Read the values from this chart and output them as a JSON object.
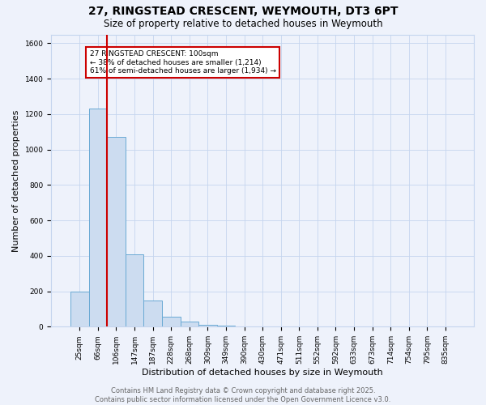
{
  "title_line1": "27, RINGSTEAD CRESCENT, WEYMOUTH, DT3 6PT",
  "title_line2": "Size of property relative to detached houses in Weymouth",
  "xlabel": "Distribution of detached houses by size in Weymouth",
  "ylabel": "Number of detached properties",
  "categories": [
    "25sqm",
    "66sqm",
    "106sqm",
    "147sqm",
    "187sqm",
    "228sqm",
    "268sqm",
    "309sqm",
    "349sqm",
    "390sqm",
    "430sqm",
    "471sqm",
    "511sqm",
    "552sqm",
    "592sqm",
    "633sqm",
    "673sqm",
    "714sqm",
    "754sqm",
    "795sqm",
    "835sqm"
  ],
  "values": [
    200,
    1230,
    1070,
    410,
    150,
    55,
    30,
    10,
    5,
    2,
    0,
    0,
    0,
    0,
    0,
    0,
    0,
    0,
    0,
    0,
    0
  ],
  "bar_color": "#ccdcf0",
  "bar_edge_color": "#6aaad4",
  "vline_color": "#cc0000",
  "annotation_text": "27 RINGSTEAD CRESCENT: 100sqm\n← 38% of detached houses are smaller (1,214)\n61% of semi-detached houses are larger (1,934) →",
  "annotation_box_color": "#ffffff",
  "annotation_box_edge_color": "#cc0000",
  "ylim": [
    0,
    1650
  ],
  "ytick_interval": 200,
  "background_color": "#eef2fb",
  "grid_color": "#c5d5ee",
  "footnote": "Contains HM Land Registry data © Crown copyright and database right 2025.\nContains public sector information licensed under the Open Government Licence v3.0.",
  "title_fontsize": 10,
  "subtitle_fontsize": 8.5,
  "ylabel_fontsize": 8,
  "xlabel_fontsize": 8,
  "tick_fontsize": 6.5,
  "annot_fontsize": 6.5,
  "footnote_fontsize": 6,
  "footnote_color": "#666666"
}
